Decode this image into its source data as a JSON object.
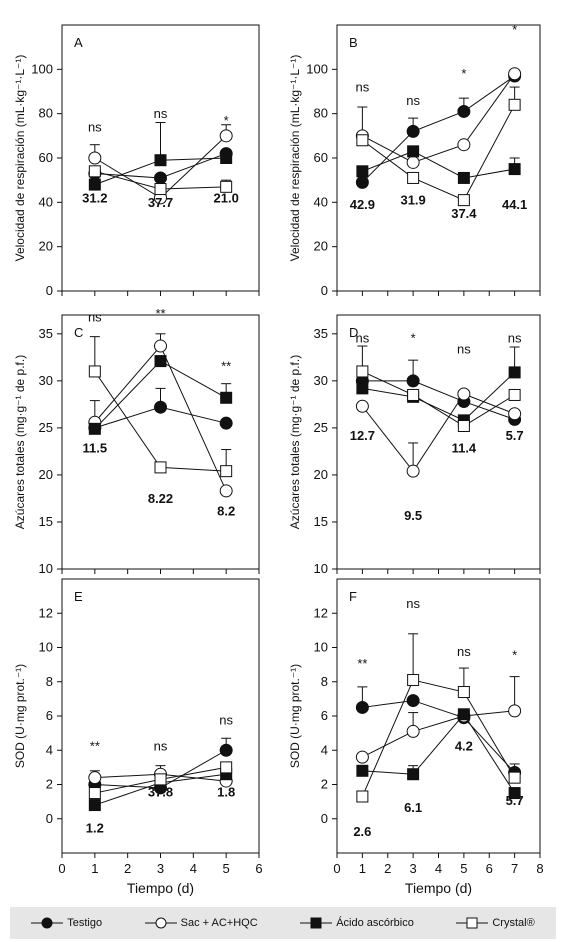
{
  "chart_data": [
    {
      "type": "line",
      "panel_letter": "A",
      "ylabel": "Velocidad de respiración (mL·kg⁻¹·L⁻¹)",
      "xlabel": "",
      "xlim": [
        0,
        6
      ],
      "ylim": [
        0,
        120
      ],
      "xticks": [
        0,
        1,
        2,
        3,
        4,
        5,
        6
      ],
      "yticks": [
        0,
        20,
        40,
        60,
        80,
        100
      ],
      "x": [
        1,
        3,
        5
      ],
      "series": [
        {
          "name": "Testigo",
          "values": [
            53,
            51,
            62
          ],
          "errors": [
            0,
            0,
            0
          ]
        },
        {
          "name": "Sac + AC+HQC",
          "values": [
            60,
            42,
            70
          ],
          "errors": [
            6,
            0,
            5
          ]
        },
        {
          "name": "Ácido ascórbico",
          "values": [
            48,
            59,
            60
          ],
          "errors": [
            0,
            17,
            0
          ]
        },
        {
          "name": "Crystal®",
          "values": [
            54,
            46,
            47
          ],
          "errors": [
            0,
            0,
            3
          ]
        }
      ],
      "significance": [
        "ns",
        "ns",
        "*"
      ],
      "sig_y": [
        72,
        78,
        75
      ],
      "numbers": [
        "31.2",
        "37.7",
        "21.0"
      ],
      "numbers_y": [
        40,
        38,
        40
      ]
    },
    {
      "type": "line",
      "panel_letter": "B",
      "ylabel": "Velocidad de respiración (mL·kg⁻¹·L⁻¹)",
      "xlabel": "",
      "xlim": [
        0,
        8
      ],
      "ylim": [
        0,
        120
      ],
      "xticks": [
        0,
        1,
        2,
        3,
        4,
        5,
        6,
        7,
        8
      ],
      "yticks": [
        0,
        20,
        40,
        60,
        80,
        100
      ],
      "x": [
        1,
        3,
        5,
        7
      ],
      "series": [
        {
          "name": "Testigo",
          "values": [
            49,
            72,
            81,
            97
          ],
          "errors": [
            0,
            6,
            6,
            0
          ]
        },
        {
          "name": "Sac + AC+HQC",
          "values": [
            70,
            58,
            66,
            98
          ],
          "errors": [
            13,
            0,
            0,
            0
          ]
        },
        {
          "name": "Ácido ascórbico",
          "values": [
            54,
            63,
            51,
            55
          ],
          "errors": [
            0,
            0,
            0,
            5
          ]
        },
        {
          "name": "Crystal®",
          "values": [
            68,
            51,
            41,
            84
          ],
          "errors": [
            0,
            0,
            0,
            8
          ]
        }
      ],
      "significance": [
        "ns",
        "ns",
        "*",
        "*"
      ],
      "sig_y": [
        90,
        84,
        96,
        116
      ],
      "numbers": [
        "42.9",
        "31.9",
        "37.4",
        "44.1"
      ],
      "numbers_y": [
        37,
        39,
        33,
        37
      ]
    },
    {
      "type": "line",
      "panel_letter": "C",
      "ylabel": "Azúcares totales (mg·g⁻¹ de p.f.)",
      "xlabel": "",
      "xlim": [
        0,
        6
      ],
      "ylim": [
        10,
        37
      ],
      "xticks": [
        0,
        1,
        2,
        3,
        4,
        5,
        6
      ],
      "yticks": [
        10,
        15,
        20,
        25,
        30,
        35
      ],
      "x": [
        1,
        3,
        5
      ],
      "series": [
        {
          "name": "Testigo",
          "values": [
            25,
            27.2,
            25.5
          ],
          "errors": [
            0,
            2,
            0
          ]
        },
        {
          "name": "Sac + AC+HQC",
          "values": [
            25.6,
            33.7,
            18.3
          ],
          "errors": [
            2.3,
            1.3,
            0
          ]
        },
        {
          "name": "Ácido ascórbico",
          "values": [
            24.9,
            32.1,
            28.2
          ],
          "errors": [
            0,
            0,
            1.5
          ]
        },
        {
          "name": "Crystal®",
          "values": [
            31,
            20.8,
            20.4
          ],
          "errors": [
            3.7,
            0,
            2.3
          ]
        }
      ],
      "significance": [
        "ns",
        "**",
        "**"
      ],
      "sig_y": [
        36.3,
        36.7,
        31.1
      ],
      "numbers": [
        "11.5",
        "8.22",
        "8.2"
      ],
      "numbers_y": [
        22.4,
        17,
        15.7
      ]
    },
    {
      "type": "line",
      "panel_letter": "D",
      "ylabel": "Azúcares totales (mg·g⁻¹ de p.f.)",
      "xlabel": "",
      "xlim": [
        0,
        8
      ],
      "ylim": [
        10,
        37
      ],
      "xticks": [
        0,
        1,
        2,
        3,
        4,
        5,
        6,
        7,
        8
      ],
      "yticks": [
        10,
        15,
        20,
        25,
        30,
        35
      ],
      "x": [
        1,
        3,
        5,
        7
      ],
      "series": [
        {
          "name": "Testigo",
          "values": [
            30,
            30,
            27.8,
            25.9
          ],
          "errors": [
            0,
            2.2,
            0,
            0
          ]
        },
        {
          "name": "Sac + AC+HQC",
          "values": [
            27.3,
            20.4,
            28.6,
            26.5
          ],
          "errors": [
            0,
            3,
            0,
            0
          ]
        },
        {
          "name": "Ácido ascórbico",
          "values": [
            29.2,
            28.3,
            25.8,
            30.9
          ],
          "errors": [
            0,
            0,
            0,
            2.7
          ]
        },
        {
          "name": "Crystal®",
          "values": [
            31,
            28.5,
            25.2,
            28.5
          ],
          "errors": [
            2.7,
            0,
            0,
            0
          ]
        }
      ],
      "significance": [
        "ns",
        "*",
        "ns",
        "ns"
      ],
      "sig_y": [
        34.1,
        34.1,
        32.9,
        34.1
      ],
      "numbers": [
        "12.7",
        "9.5",
        "11.4",
        "5.7"
      ],
      "numbers_y": [
        23.7,
        15.2,
        22.4,
        23.7
      ]
    },
    {
      "type": "line",
      "panel_letter": "E",
      "ylabel": "SOD (U·mg prot.⁻¹)",
      "xlabel": "Tiempo  (d)",
      "xlim": [
        0,
        6
      ],
      "ylim": [
        -2,
        14
      ],
      "xticks": [
        0,
        1,
        2,
        3,
        4,
        5,
        6
      ],
      "yticks": [
        0,
        2,
        4,
        6,
        8,
        10,
        12
      ],
      "x": [
        1,
        3,
        5
      ],
      "series": [
        {
          "name": "Testigo",
          "values": [
            2,
            1.8,
            4
          ],
          "errors": [
            0,
            0,
            0.7
          ]
        },
        {
          "name": "Sac + AC+HQC",
          "values": [
            2.4,
            2.6,
            2.2
          ],
          "errors": [
            0.4,
            0.5,
            0
          ]
        },
        {
          "name": "Ácido ascórbico",
          "values": [
            0.8,
            2.1,
            2.6
          ],
          "errors": [
            0,
            0,
            0
          ]
        },
        {
          "name": "Crystal®",
          "values": [
            1.5,
            2.3,
            3
          ],
          "errors": [
            0,
            0,
            0
          ]
        }
      ],
      "significance": [
        "**",
        "ns",
        "ns"
      ],
      "sig_y": [
        4,
        4,
        5.5
      ],
      "numbers": [
        "1.2",
        "37.8",
        "1.8"
      ],
      "numbers_y": [
        -0.8,
        1.3,
        1.3
      ]
    },
    {
      "type": "line",
      "panel_letter": "F",
      "ylabel": "SOD (U·mg prot.⁻¹)",
      "xlabel": "Tiempo  (d)",
      "xlim": [
        0,
        8
      ],
      "ylim": [
        -2,
        14
      ],
      "xticks": [
        0,
        1,
        2,
        3,
        4,
        5,
        6,
        7,
        8
      ],
      "yticks": [
        0,
        2,
        4,
        6,
        8,
        10,
        12
      ],
      "x": [
        1,
        3,
        5,
        7
      ],
      "series": [
        {
          "name": "Testigo",
          "values": [
            6.5,
            6.9,
            5.9,
            2.7
          ],
          "errors": [
            1.2,
            0,
            0,
            0.5
          ]
        },
        {
          "name": "Sac + AC+HQC",
          "values": [
            3.6,
            5.1,
            6,
            6.3
          ],
          "errors": [
            0,
            1.1,
            0,
            2
          ]
        },
        {
          "name": "Ácido ascórbico",
          "values": [
            2.8,
            2.6,
            6.1,
            1.5
          ],
          "errors": [
            0,
            0.5,
            0,
            0
          ]
        },
        {
          "name": "Crystal®",
          "values": [
            1.3,
            8.1,
            7.4,
            2.4
          ],
          "errors": [
            0,
            2.7,
            1.4,
            0
          ]
        }
      ],
      "significance": [
        "**",
        "ns",
        "ns",
        "*"
      ],
      "sig_y": [
        8.8,
        12.3,
        9.5,
        9.3
      ],
      "numbers": [
        "2.6",
        "6.1",
        "4.2",
        "5.7"
      ],
      "numbers_y": [
        -1,
        0.4,
        4,
        0.8
      ]
    }
  ],
  "legend": [
    {
      "label": "Testigo",
      "marker": "filled-circle"
    },
    {
      "label": "Sac + AC+HQC",
      "marker": "open-circle"
    },
    {
      "label": "Ácido ascórbico",
      "marker": "filled-square"
    },
    {
      "label": "Crystal®",
      "marker": "open-square"
    }
  ],
  "colors": {
    "ink": "#111111",
    "legend_bg": "#e6e6e6"
  }
}
